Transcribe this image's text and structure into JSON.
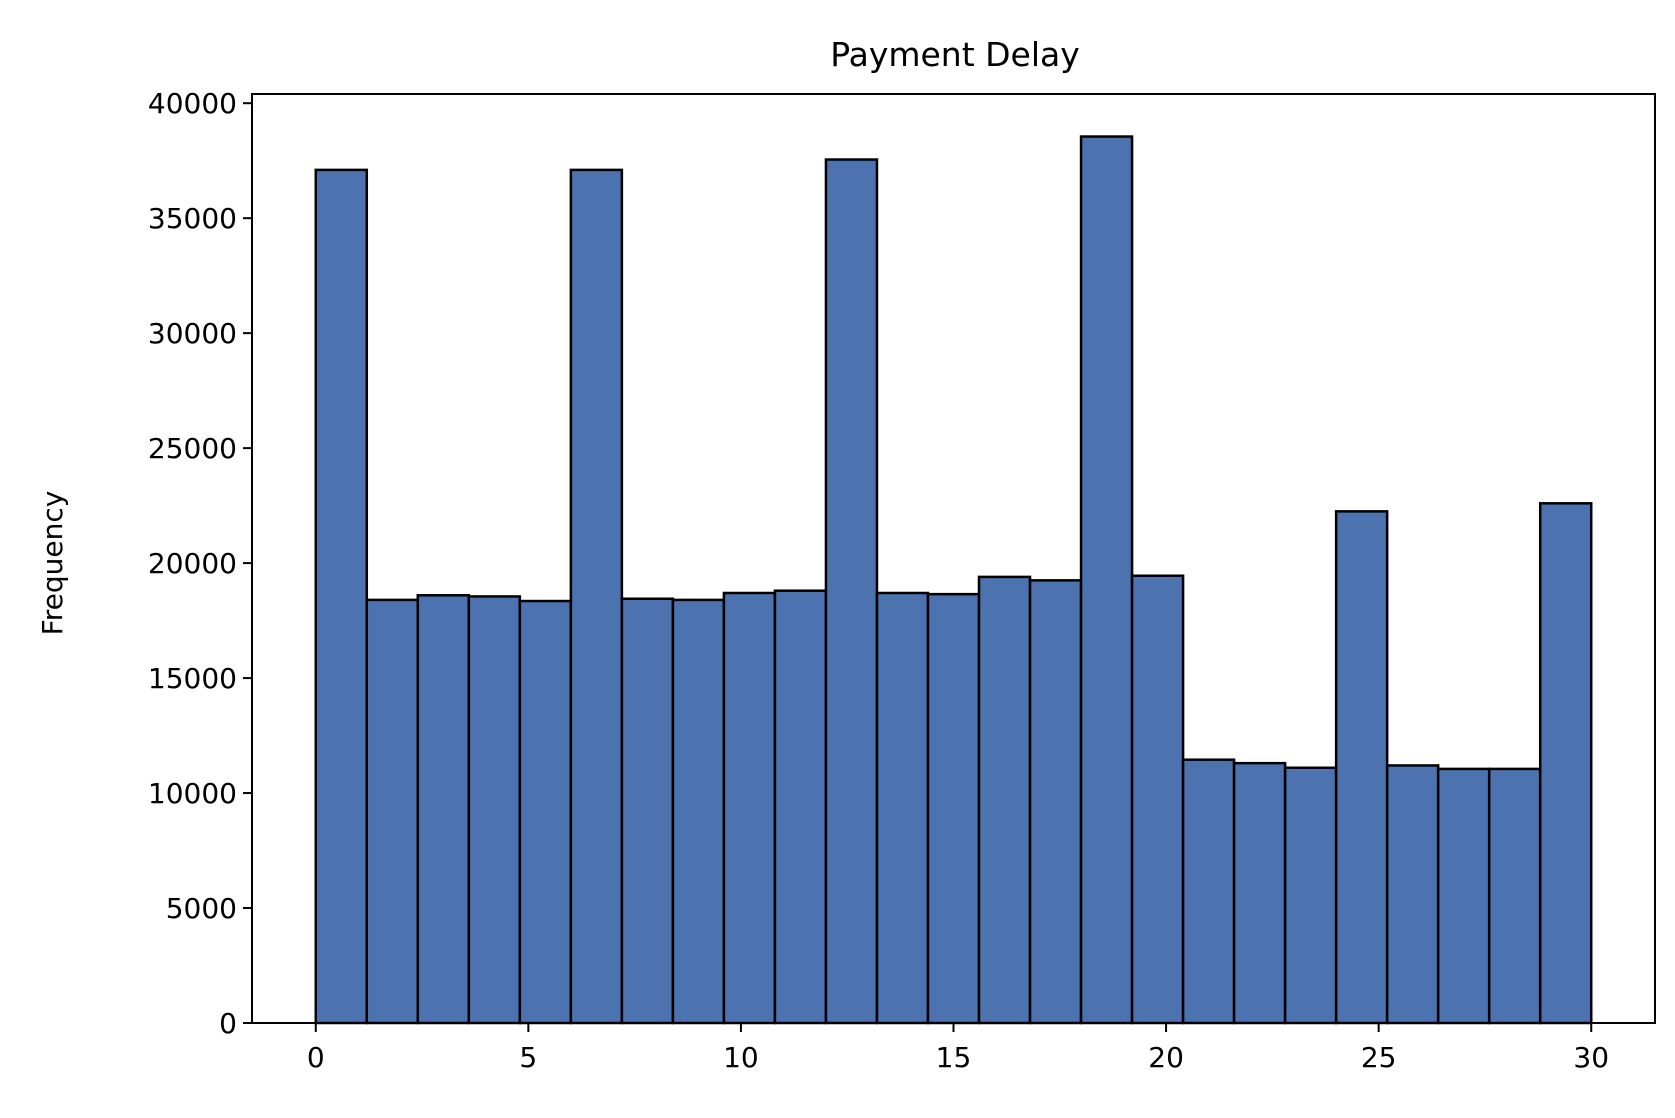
{
  "chart_data": {
    "type": "bar",
    "title": "Payment Delay",
    "xlabel": "",
    "ylabel": "Frequency",
    "xlim": [
      -1.5,
      31.5
    ],
    "ylim": [
      0,
      40400
    ],
    "xticks": [
      0,
      5,
      10,
      15,
      20,
      25,
      30
    ],
    "yticks": [
      0,
      5000,
      10000,
      15000,
      20000,
      25000,
      30000,
      35000,
      40000
    ],
    "bin_range": [
      0,
      30
    ],
    "bins": 25,
    "values": [
      37100,
      18400,
      18600,
      18550,
      18350,
      37100,
      18450,
      18400,
      18700,
      18800,
      37550,
      18700,
      18650,
      19400,
      19250,
      38550,
      19450,
      11450,
      11300,
      11100,
      22250,
      11200,
      11050,
      11050,
      22600
    ],
    "grid": false,
    "legend": "none",
    "colors": {
      "bar_fill": "#4c72b0",
      "bar_edge": "#000000",
      "axes": "#000000",
      "background": "#ffffff"
    }
  }
}
